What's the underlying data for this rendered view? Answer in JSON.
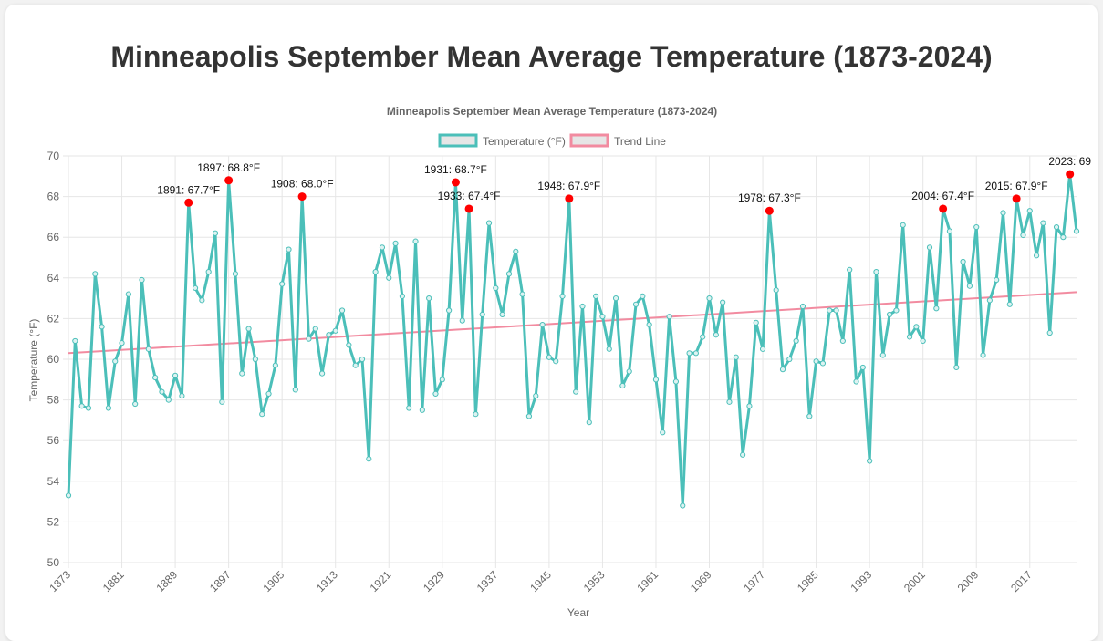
{
  "page": {
    "title": "Minneapolis September Mean Average Temperature (1873-2024)"
  },
  "colors": {
    "temperature_line": "#4bbfb9",
    "trend_line": "#f28ba0",
    "highlight_point": "#ff0000",
    "grid": "#e6e6e6",
    "text": "#666666"
  },
  "chart_data": {
    "type": "line",
    "title": "Minneapolis September Mean Average Temperature (1873-2024)",
    "xlabel": "Year",
    "ylabel": "Temperature (°F)",
    "ylim": [
      50,
      70
    ],
    "y_ticks": [
      50,
      52,
      54,
      56,
      58,
      60,
      62,
      64,
      66,
      68,
      70
    ],
    "x_ticks": [
      "1873",
      "1881",
      "1889",
      "1897",
      "1905",
      "1913",
      "1921",
      "1929",
      "1937",
      "1945",
      "1953",
      "1961",
      "1969",
      "1977",
      "1985",
      "1993",
      "2001",
      "2009",
      "2017"
    ],
    "grid": true,
    "legend_position": "top-center",
    "x": [
      1873,
      1874,
      1875,
      1876,
      1877,
      1878,
      1879,
      1880,
      1881,
      1882,
      1883,
      1884,
      1885,
      1886,
      1887,
      1888,
      1889,
      1890,
      1891,
      1892,
      1893,
      1894,
      1895,
      1896,
      1897,
      1898,
      1899,
      1900,
      1901,
      1902,
      1903,
      1904,
      1905,
      1906,
      1907,
      1908,
      1909,
      1910,
      1911,
      1912,
      1913,
      1914,
      1915,
      1916,
      1917,
      1918,
      1919,
      1920,
      1921,
      1922,
      1923,
      1924,
      1925,
      1926,
      1927,
      1928,
      1929,
      1930,
      1931,
      1932,
      1933,
      1934,
      1935,
      1936,
      1937,
      1938,
      1939,
      1940,
      1941,
      1942,
      1943,
      1944,
      1945,
      1946,
      1947,
      1948,
      1949,
      1950,
      1951,
      1952,
      1953,
      1954,
      1955,
      1956,
      1957,
      1958,
      1959,
      1960,
      1961,
      1962,
      1963,
      1964,
      1965,
      1966,
      1967,
      1968,
      1969,
      1970,
      1971,
      1972,
      1973,
      1974,
      1975,
      1976,
      1977,
      1978,
      1979,
      1980,
      1981,
      1982,
      1983,
      1984,
      1985,
      1986,
      1987,
      1988,
      1989,
      1990,
      1991,
      1992,
      1993,
      1994,
      1995,
      1996,
      1997,
      1998,
      1999,
      2000,
      2001,
      2002,
      2003,
      2004,
      2005,
      2006,
      2007,
      2008,
      2009,
      2010,
      2011,
      2012,
      2013,
      2014,
      2015,
      2016,
      2017,
      2018,
      2019,
      2020,
      2021,
      2022,
      2023,
      2024
    ],
    "series": [
      {
        "name": "Temperature (°F)",
        "values": [
          53.3,
          60.9,
          57.7,
          57.6,
          64.2,
          61.6,
          57.6,
          59.9,
          60.8,
          63.2,
          57.8,
          63.9,
          60.5,
          59.1,
          58.4,
          58.0,
          59.2,
          58.2,
          67.7,
          63.5,
          62.9,
          64.3,
          66.2,
          57.9,
          68.8,
          64.2,
          59.3,
          61.5,
          60.0,
          57.3,
          58.3,
          59.7,
          63.7,
          65.4,
          58.5,
          68.0,
          61.0,
          61.5,
          59.3,
          61.2,
          61.4,
          62.4,
          60.7,
          59.7,
          60.0,
          55.1,
          64.3,
          65.5,
          64.0,
          65.7,
          63.1,
          57.6,
          65.8,
          57.5,
          63.0,
          58.3,
          59.0,
          62.4,
          68.7,
          61.9,
          67.4,
          57.3,
          62.2,
          66.7,
          63.5,
          62.2,
          64.2,
          65.3,
          63.2,
          57.2,
          58.2,
          61.7,
          60.1,
          59.9,
          63.1,
          67.9,
          58.4,
          62.6,
          56.9,
          63.1,
          62.1,
          60.5,
          63.0,
          58.7,
          59.4,
          62.7,
          63.1,
          61.7,
          59.0,
          56.4,
          62.1,
          58.9,
          52.8,
          60.3,
          60.3,
          61.1,
          63.0,
          61.2,
          62.8,
          57.9,
          60.1,
          55.3,
          57.7,
          61.8,
          60.5,
          67.3,
          63.4,
          59.5,
          60.0,
          60.9,
          62.6,
          57.2,
          59.9,
          59.8,
          62.4,
          62.4,
          60.9,
          64.4,
          58.9,
          59.6,
          55.0,
          64.3,
          60.2,
          62.2,
          62.4,
          66.6,
          61.1,
          61.6,
          60.9,
          65.5,
          62.5,
          67.4,
          66.3,
          59.6,
          64.8,
          63.6,
          66.5,
          60.2,
          62.9,
          63.9,
          67.2,
          62.7,
          67.9,
          66.1,
          67.3,
          65.1,
          66.7,
          61.3,
          66.5,
          66.0,
          69.1,
          66.3
        ]
      },
      {
        "name": "Trend Line",
        "start": {
          "x": 1873,
          "y": 60.3
        },
        "end": {
          "x": 2024,
          "y": 63.3
        }
      }
    ],
    "annotations": [
      {
        "x": 1891,
        "y": 67.7,
        "text": "1891: 67.7°F"
      },
      {
        "x": 1897,
        "y": 68.8,
        "text": "1897: 68.8°F"
      },
      {
        "x": 1908,
        "y": 68.0,
        "text": "1908: 68.0°F"
      },
      {
        "x": 1931,
        "y": 68.7,
        "text": "1931: 68.7°F"
      },
      {
        "x": 1933,
        "y": 67.4,
        "text": "1933: 67.4°F"
      },
      {
        "x": 1948,
        "y": 67.9,
        "text": "1948: 67.9°F"
      },
      {
        "x": 1978,
        "y": 67.3,
        "text": "1978: 67.3°F"
      },
      {
        "x": 2004,
        "y": 67.4,
        "text": "2004: 67.4°F"
      },
      {
        "x": 2015,
        "y": 67.9,
        "text": "2015: 67.9°F"
      },
      {
        "x": 2023,
        "y": 69.1,
        "text": "2023: 69"
      }
    ]
  }
}
